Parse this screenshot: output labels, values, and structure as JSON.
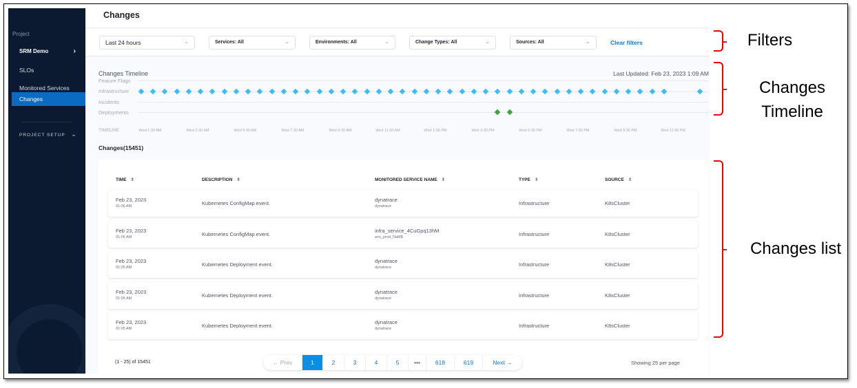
{
  "sidebar": {
    "project_label": "Project",
    "project_name": "SRM Demo",
    "items": [
      {
        "label": "SLOs"
      },
      {
        "label": "Monitored Services"
      },
      {
        "label": "Changes",
        "active": true
      }
    ],
    "project_setup": "PROJECT SETUP"
  },
  "header": {
    "title": "Changes"
  },
  "filters": {
    "time_range": "Last 24 hours",
    "services": "Services: All",
    "environments": "Environments: All",
    "change_types": "Change Types: All",
    "sources": "Sources: All",
    "clear": "Clear filters"
  },
  "timeline": {
    "title": "Changes Timeline",
    "last_updated": "Last Updated: Feb 23, 2023 1:09 AM",
    "axis_label": "TIMELINE",
    "rows": [
      "Feature Flags",
      "Infrastructure",
      "Incidents",
      "Deployments"
    ],
    "ticks": [
      "Wed 1:30 AM",
      "Wed 3:30 AM",
      "Wed 5:30 AM",
      "Wed 7:30 AM",
      "Wed 9:30 AM",
      "Wed 11:30 AM",
      "Wed 1:30 PM",
      "Wed 3:30 PM",
      "Wed 5:30 PM",
      "Wed 7:30 PM",
      "Wed 9:30 PM",
      "Wed 11:30 PM"
    ],
    "colors": {
      "Infrastructure": "#3dbdf5",
      "Deployments": "#3fa33a"
    },
    "events": {
      "Infrastructure": [
        "01:07",
        "01:37",
        "02:07",
        "02:37",
        "03:07",
        "03:37",
        "04:07",
        "04:37",
        "05:07",
        "05:37",
        "06:07",
        "06:37",
        "07:07",
        "07:37",
        "08:07",
        "08:37",
        "09:07",
        "09:37",
        "10:07",
        "10:37",
        "11:07",
        "11:37",
        "12:07",
        "12:37",
        "13:07",
        "13:37",
        "14:07",
        "14:37",
        "15:07",
        "15:37",
        "16:07",
        "16:37",
        "17:07",
        "17:37",
        "18:07",
        "18:37",
        "19:07",
        "19:37",
        "20:07",
        "20:37",
        "21:07",
        "21:37",
        "22:07",
        "22:37",
        "23:07",
        "00:37"
      ],
      "Deployments": [
        "16:07",
        "16:37"
      ]
    }
  },
  "changes": {
    "title": "Changes(15451)",
    "columns": [
      "TIME",
      "DESCRIPTION",
      "MONITORED SERVICE NAME",
      "TYPE",
      "SOURCE"
    ],
    "rows": [
      {
        "date": "Feb 23, 2023",
        "time": "01:06 AM",
        "description": "Kubernetes ConfigMap event.",
        "service": "dynatrace",
        "env": "dynatrace",
        "type": "Infrastructure",
        "source": "K8sCluster"
      },
      {
        "date": "Feb 23, 2023",
        "time": "01:06 AM",
        "description": "Kubernetes ConfigMap event.",
        "service": "infra_service_4CuGpq13hM",
        "env": "env_prod_NaMB",
        "type": "Infrastructure",
        "source": "K8sCluster"
      },
      {
        "date": "Feb 23, 2023",
        "time": "01:05 AM",
        "description": "Kubernetes Deployment event.",
        "service": "dynatrace",
        "env": "dynatrace",
        "type": "Infrastructure",
        "source": "K8sCluster"
      },
      {
        "date": "Feb 23, 2023",
        "time": "01:05 AM",
        "description": "Kubernetes Deployment event.",
        "service": "dynatrace",
        "env": "dynatrace",
        "type": "Infrastructure",
        "source": "K8sCluster"
      },
      {
        "date": "Feb 23, 2023",
        "time": "01:05 AM",
        "description": "Kubernetes Deployment event.",
        "service": "dynatrace",
        "env": "dynatrace",
        "type": "Infrastructure",
        "source": "K8sCluster"
      }
    ]
  },
  "pagination": {
    "range": "(1 - 25) of 15451",
    "prev": "← Prev",
    "pages": [
      "1",
      "2",
      "3",
      "4",
      "5",
      "•••",
      "618",
      "619"
    ],
    "current": "1",
    "next": "Next →",
    "per_page": "Showing 25 per page"
  },
  "annotations": {
    "filters": "Filters",
    "timeline": "Changes Timeline",
    "list": "Changes list"
  }
}
